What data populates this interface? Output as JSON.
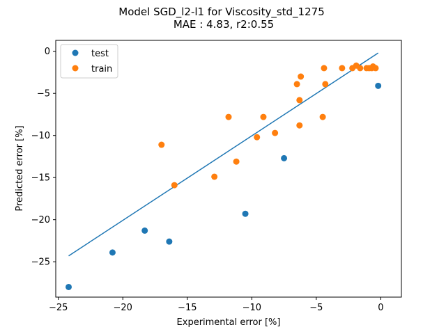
{
  "chart_data": {
    "type": "scatter",
    "title_line1": "Model SGD_l2-l1 for Viscosity_std_1275",
    "title_line2": "MAE :  4.83, r2:0.55",
    "xlabel": "Experimental error [%]",
    "ylabel": "Predicted error [%]",
    "xlim": [
      -25.2,
      1.6
    ],
    "ylim": [
      -29.2,
      1.3
    ],
    "xticks": [
      -25,
      -20,
      -15,
      -10,
      -5,
      0
    ],
    "yticks": [
      -25,
      -20,
      -15,
      -10,
      -5,
      0
    ],
    "xtick_labels": [
      "−25",
      "−20",
      "−15",
      "−10",
      "−5",
      "0"
    ],
    "ytick_labels": [
      "−25",
      "−20",
      "−15",
      "−10",
      "−5",
      "0"
    ],
    "grid": false,
    "legend_position": "top-left",
    "series": [
      {
        "name": "test",
        "color": "#1f77b4",
        "points": [
          [
            -24.2,
            -28.0
          ],
          [
            -20.8,
            -23.9
          ],
          [
            -18.3,
            -21.3
          ],
          [
            -16.4,
            -22.6
          ],
          [
            -10.5,
            -19.3
          ],
          [
            -7.5,
            -12.7
          ],
          [
            -0.2,
            -4.1
          ]
        ]
      },
      {
        "name": "train",
        "color": "#ff7f0e",
        "points": [
          [
            -17.0,
            -11.1
          ],
          [
            -16.0,
            -15.9
          ],
          [
            -12.9,
            -14.9
          ],
          [
            -11.2,
            -13.1
          ],
          [
            -11.8,
            -7.8
          ],
          [
            -9.6,
            -10.2
          ],
          [
            -9.1,
            -7.8
          ],
          [
            -8.2,
            -9.7
          ],
          [
            -6.5,
            -3.9
          ],
          [
            -6.3,
            -5.8
          ],
          [
            -6.3,
            -8.8
          ],
          [
            -6.2,
            -3.0
          ],
          [
            -4.5,
            -7.8
          ],
          [
            -4.4,
            -2.0
          ],
          [
            -4.3,
            -3.9
          ],
          [
            -3.0,
            -2.0
          ],
          [
            -2.2,
            -2.0
          ],
          [
            -1.9,
            -1.7
          ],
          [
            -1.6,
            -2.0
          ],
          [
            -1.1,
            -2.0
          ],
          [
            -0.9,
            -2.0
          ],
          [
            -0.7,
            -2.0
          ],
          [
            -0.6,
            -1.8
          ],
          [
            -0.4,
            -2.0
          ]
        ]
      }
    ],
    "fit_line": {
      "color": "#1f77b4",
      "points": [
        [
          -24.2,
          -24.3
        ],
        [
          -0.2,
          -0.2
        ]
      ]
    }
  }
}
